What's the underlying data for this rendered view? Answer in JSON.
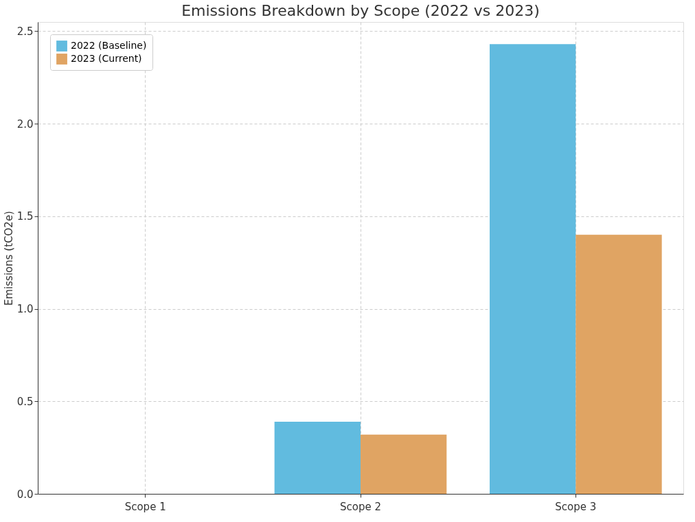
{
  "chart_data": {
    "type": "bar",
    "title": "Emissions Breakdown by Scope (2022 vs 2023)",
    "ylabel": "Emissions (tCO2e)",
    "categories": [
      "Scope 1",
      "Scope 2",
      "Scope 3"
    ],
    "series": [
      {
        "name": "2022 (Baseline)",
        "color": "#61bbdf",
        "values": [
          0,
          0.39,
          2.43
        ]
      },
      {
        "name": "2023 (Current)",
        "color": "#e0a463",
        "values": [
          0,
          0.32,
          1.4
        ]
      }
    ],
    "ylim": [
      0,
      2.55
    ],
    "yticks": [
      {
        "value": 0,
        "label": "0.0"
      },
      0.5,
      {
        "value": 1,
        "label": "1.0"
      },
      1.5,
      {
        "value": 2,
        "label": "2.0"
      },
      2.5
    ],
    "grid": true,
    "legend": "top left"
  }
}
